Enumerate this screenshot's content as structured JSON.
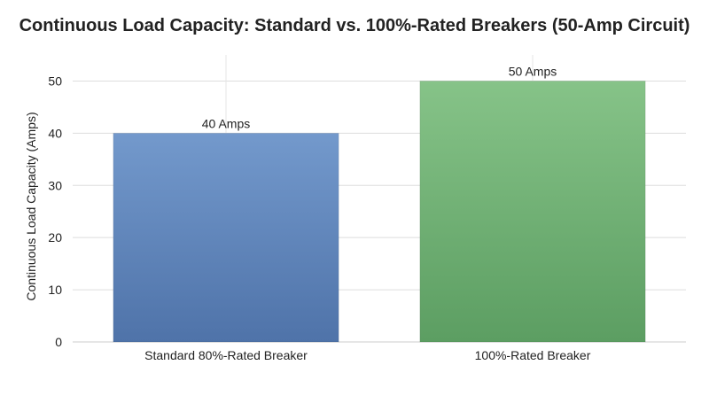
{
  "chart_data": {
    "type": "bar",
    "title": "Continuous Load Capacity: Standard vs. 100%-Rated Breakers (50-Amp Circuit)",
    "xlabel": "",
    "ylabel": "Continuous Load Capacity (Amps)",
    "ylim": [
      0,
      55
    ],
    "yticks": [
      0,
      10,
      20,
      30,
      40,
      50
    ],
    "grid": true,
    "categories": [
      "Standard 80%-Rated Breaker",
      "100%-Rated Breaker"
    ],
    "values": [
      40,
      50
    ],
    "data_labels": [
      "40 Amps",
      "50 Amps"
    ],
    "colors": [
      {
        "top": "#7399cc",
        "bottom": "#4f73a9"
      },
      {
        "top": "#86c388",
        "bottom": "#5c9e62"
      }
    ]
  }
}
